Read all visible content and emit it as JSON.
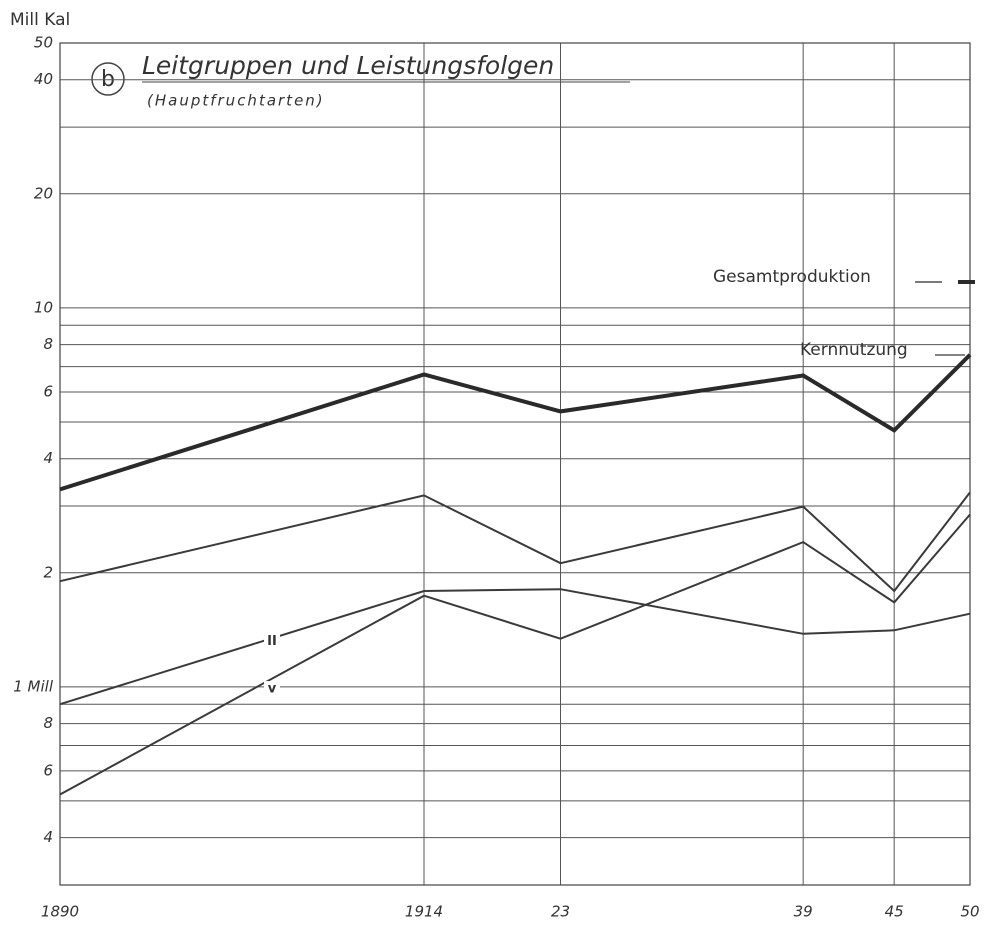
{
  "chart_data": {
    "type": "line",
    "title": "Leitgruppen und Leistungsfolgen",
    "subtitle": "(Hauptfruchtarten)",
    "panel_label": "b",
    "y_label": "Mill Kal",
    "log_scale": true,
    "grid": true,
    "x": [
      1890,
      1914,
      1923,
      1939,
      1945,
      1950
    ],
    "xlim": [
      1890,
      1950
    ],
    "xticks": [
      1890,
      1914,
      {
        "value": 1923,
        "label": "23"
      },
      {
        "value": 1939,
        "label": "39"
      },
      {
        "value": 1945,
        "label": "45"
      },
      {
        "value": 1950,
        "label": "50"
      }
    ],
    "ylim": [
      0.3,
      50
    ],
    "yticks": [
      50,
      40,
      20,
      10,
      8,
      6,
      4,
      2,
      {
        "value": 1,
        "label": "1 Mill"
      },
      {
        "value": 0.8,
        "label": "8"
      },
      {
        "value": 0.6,
        "label": "6"
      },
      {
        "value": 0.4,
        "label": "4"
      }
    ],
    "minor_gridlines": [
      30,
      9,
      7,
      5,
      3,
      0.9,
      0.7,
      0.5
    ],
    "series": [
      {
        "name": "Gesamtproduktion",
        "color": "#2a2a2a",
        "width": 4,
        "legend": true,
        "values": [
          3.32,
          6.67,
          5.33,
          6.63,
          4.75,
          7.52
        ]
      },
      {
        "name": "Kernnutzung",
        "color": "#3a3a3a",
        "width": 2,
        "legend": true,
        "values": [
          1.9,
          3.2,
          2.12,
          2.99,
          1.79,
          3.26
        ]
      },
      {
        "name": "v",
        "color": "#3a3a3a",
        "width": 2,
        "legend": false,
        "values": [
          0.52,
          1.74,
          1.34,
          2.41,
          1.67,
          2.85
        ]
      },
      {
        "name": "II",
        "color": "#3a3a3a",
        "width": 2,
        "legend": false,
        "values": [
          0.9,
          1.79,
          1.81,
          1.38,
          1.41,
          1.56
        ]
      }
    ]
  }
}
